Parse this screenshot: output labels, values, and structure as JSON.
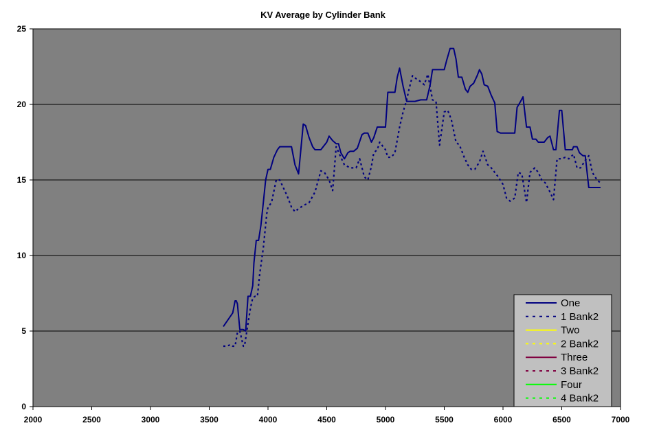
{
  "chart_data": {
    "type": "line",
    "title": "KV Average by Cylinder Bank",
    "xlabel": "",
    "ylabel": "",
    "xlim": [
      2000,
      7000
    ],
    "ylim": [
      0,
      25
    ],
    "xticks": [
      2000,
      2500,
      3000,
      3500,
      4000,
      4500,
      5000,
      5500,
      6000,
      6500,
      7000
    ],
    "yticks": [
      0,
      5,
      10,
      15,
      20,
      25
    ],
    "grid": "horizontal",
    "plot_background": "#808080",
    "legend_position": "bottom-right",
    "series": [
      {
        "name": "One",
        "color": "#000080",
        "dash": "solid",
        "x": [
          3620,
          3700,
          3720,
          3730,
          3740,
          3760,
          3790,
          3810,
          3830,
          3850,
          3870,
          3880,
          3900,
          3920,
          3940,
          3960,
          3980,
          4000,
          4020,
          4050,
          4080,
          4100,
          4130,
          4160,
          4200,
          4230,
          4260,
          4300,
          4320,
          4350,
          4380,
          4400,
          4450,
          4500,
          4520,
          4550,
          4580,
          4600,
          4620,
          4650,
          4680,
          4700,
          4730,
          4760,
          4800,
          4820,
          4850,
          4880,
          4900,
          4930,
          4960,
          5000,
          5020,
          5050,
          5080,
          5100,
          5120,
          5150,
          5180,
          5200,
          5250,
          5300,
          5350,
          5380,
          5400,
          5450,
          5500,
          5520,
          5550,
          5580,
          5600,
          5620,
          5650,
          5680,
          5700,
          5720,
          5750,
          5780,
          5800,
          5820,
          5840,
          5870,
          5900,
          5930,
          5950,
          5980,
          6000,
          6050,
          6080,
          6100,
          6120,
          6150,
          6170,
          6200,
          6230,
          6250,
          6280,
          6300,
          6330,
          6350,
          6380,
          6400,
          6430,
          6450,
          6480,
          6500,
          6530,
          6550,
          6570,
          6590,
          6600,
          6630,
          6650,
          6680,
          6700,
          6730,
          6750,
          6780,
          6800,
          6830
        ],
        "y": [
          5.3,
          6.2,
          7.0,
          7.0,
          6.8,
          5.1,
          5.1,
          5.0,
          7.3,
          7.3,
          8.0,
          9.5,
          11.0,
          11.0,
          12.0,
          13.5,
          15.0,
          15.7,
          15.7,
          16.5,
          17.0,
          17.2,
          17.2,
          17.2,
          17.2,
          16.0,
          15.4,
          18.7,
          18.6,
          17.8,
          17.2,
          17.0,
          17.0,
          17.5,
          17.9,
          17.6,
          17.4,
          17.4,
          16.8,
          16.4,
          16.8,
          16.9,
          16.9,
          17.1,
          18.0,
          18.1,
          18.1,
          17.5,
          17.8,
          18.5,
          18.5,
          18.5,
          20.8,
          20.8,
          20.8,
          21.8,
          22.4,
          21.2,
          20.2,
          20.2,
          20.2,
          20.3,
          20.3,
          21.3,
          22.3,
          22.3,
          22.3,
          22.9,
          23.7,
          23.7,
          23.0,
          21.8,
          21.8,
          21.0,
          20.8,
          21.2,
          21.4,
          21.9,
          22.3,
          22.0,
          21.3,
          21.2,
          20.6,
          20.1,
          18.2,
          18.1,
          18.1,
          18.1,
          18.1,
          18.1,
          19.8,
          20.2,
          20.5,
          18.5,
          18.5,
          17.7,
          17.7,
          17.5,
          17.5,
          17.5,
          17.8,
          17.9,
          17.0,
          17.0,
          19.6,
          19.6,
          17.0,
          17.0,
          17.0,
          17.0,
          17.2,
          17.2,
          16.8,
          16.6,
          16.6,
          14.5,
          14.5,
          14.5,
          14.5,
          14.5
        ]
      },
      {
        "name": "1 Bank2",
        "color": "#000080",
        "dash": "dotted",
        "x": [
          3620,
          3650,
          3680,
          3700,
          3720,
          3740,
          3760,
          3790,
          3800,
          3820,
          3850,
          3870,
          3890,
          3910,
          3930,
          3960,
          3990,
          4000,
          4030,
          4070,
          4100,
          4130,
          4160,
          4200,
          4230,
          4260,
          4300,
          4350,
          4400,
          4450,
          4480,
          4520,
          4550,
          4580,
          4620,
          4650,
          4700,
          4750,
          4780,
          4820,
          4850,
          4880,
          4900,
          4930,
          4950,
          5000,
          5020,
          5050,
          5080,
          5120,
          5150,
          5180,
          5200,
          5230,
          5260,
          5300,
          5330,
          5360,
          5400,
          5430,
          5460,
          5500,
          5530,
          5560,
          5600,
          5630,
          5670,
          5700,
          5730,
          5760,
          5800,
          5830,
          5870,
          5900,
          5930,
          5960,
          6000,
          6030,
          6060,
          6100,
          6130,
          6160,
          6200,
          6230,
          6270,
          6300,
          6330,
          6360,
          6400,
          6430,
          6460,
          6500,
          6530,
          6560,
          6600,
          6630,
          6660,
          6700,
          6730,
          6760,
          6800,
          6830
        ],
        "y": [
          4.0,
          4.0,
          4.1,
          4.0,
          4.0,
          4.9,
          5.0,
          4.0,
          4.0,
          5.0,
          6.5,
          7.2,
          7.3,
          7.3,
          8.8,
          10.5,
          12.8,
          13.2,
          13.5,
          15.0,
          15.0,
          14.5,
          14.0,
          13.2,
          12.9,
          13.1,
          13.3,
          13.5,
          14.2,
          15.6,
          15.5,
          15.0,
          14.3,
          17.2,
          16.5,
          16.0,
          15.8,
          15.8,
          16.4,
          15.2,
          15.0,
          15.9,
          16.8,
          17.0,
          17.5,
          17.0,
          16.5,
          16.5,
          16.8,
          18.5,
          19.5,
          20.3,
          21.0,
          21.9,
          21.7,
          21.5,
          21.3,
          22.0,
          20.3,
          20.2,
          17.3,
          19.5,
          19.6,
          19.0,
          17.5,
          17.3,
          16.5,
          16.0,
          15.7,
          15.7,
          16.2,
          16.9,
          16.0,
          15.8,
          15.5,
          15.2,
          14.7,
          13.8,
          13.6,
          13.8,
          15.5,
          15.4,
          13.5,
          15.5,
          15.8,
          15.5,
          15.0,
          14.8,
          14.2,
          13.7,
          16.4,
          16.4,
          16.5,
          16.4,
          16.7,
          15.8,
          15.8,
          16.3,
          16.6,
          15.5,
          15.0,
          14.8
        ]
      },
      {
        "name": "Two",
        "color": "#ffff00",
        "dash": "solid",
        "x": [],
        "y": []
      },
      {
        "name": "2 Bank2",
        "color": "#ffff00",
        "dash": "dotted",
        "x": [],
        "y": []
      },
      {
        "name": "Three",
        "color": "#800040",
        "dash": "solid",
        "x": [],
        "y": []
      },
      {
        "name": "3 Bank2",
        "color": "#800040",
        "dash": "dotted",
        "x": [],
        "y": []
      },
      {
        "name": "Four",
        "color": "#00ff00",
        "dash": "solid",
        "x": [],
        "y": []
      },
      {
        "name": "4 Bank2",
        "color": "#00ff00",
        "dash": "dotted",
        "x": [],
        "y": []
      }
    ]
  }
}
